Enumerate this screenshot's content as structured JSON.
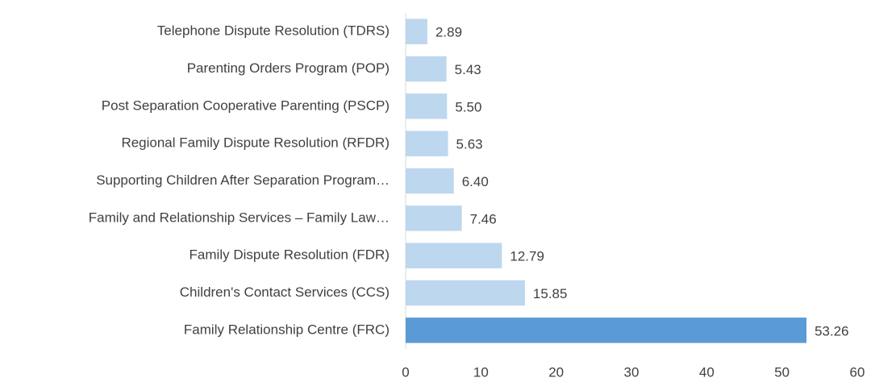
{
  "chart_data": {
    "type": "bar",
    "orientation": "horizontal",
    "categories": [
      "Telephone Dispute Resolution (TDRS)",
      "Parenting Orders Program (POP)",
      "Post Separation Cooperative Parenting (PSCP)",
      "Regional Family Dispute Resolution (RFDR)",
      "Supporting Children After Separation Program…",
      "Family and Relationship Services – Family Law…",
      "Family Dispute Resolution (FDR)",
      "Children's Contact Services (CCS)",
      "Family Relationship Centre (FRC)"
    ],
    "values": [
      2.89,
      5.43,
      5.5,
      5.63,
      6.4,
      7.46,
      12.79,
      15.85,
      53.26
    ],
    "value_labels": [
      "2.89",
      "5.43",
      "5.50",
      "5.63",
      "6.40",
      "7.46",
      "12.79",
      "15.85",
      "53.26"
    ],
    "colors": [
      "#bdd7ee",
      "#bdd7ee",
      "#bdd7ee",
      "#bdd7ee",
      "#bdd7ee",
      "#bdd7ee",
      "#bdd7ee",
      "#bdd7ee",
      "#5b9bd5"
    ],
    "xlim": [
      0,
      60
    ],
    "xticks": [
      0,
      10,
      20,
      30,
      40,
      50,
      60
    ],
    "grid": false
  }
}
